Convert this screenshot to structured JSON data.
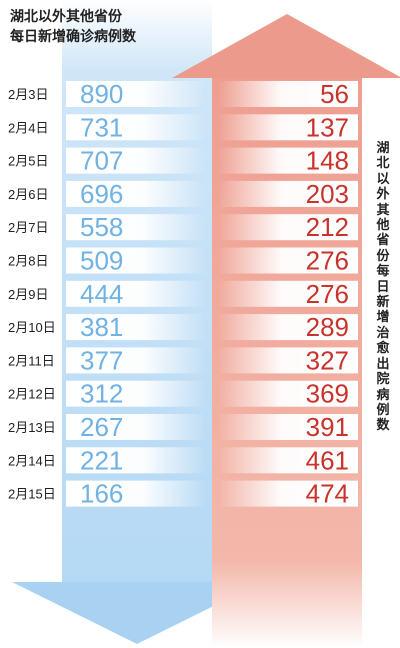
{
  "left_title_line1": "湖北以外其他省份",
  "left_title_line2": "每日新增确诊病例数",
  "right_title": "湖北以外其他省份每日新增治愈出院病例数",
  "colors": {
    "confirmed_text": "#6fb2e3",
    "confirmed_arrow": "#bcdcf5",
    "cured_text": "#c8332b",
    "cured_arrow": "#eea496"
  },
  "chart_data": {
    "type": "table",
    "categories": [
      "2月3日",
      "2月4日",
      "2月5日",
      "2月6日",
      "2月7日",
      "2月8日",
      "2月9日",
      "2月10日",
      "2月11日",
      "2月12日",
      "2月13日",
      "2月14日",
      "2月15日"
    ],
    "series": [
      {
        "name": "湖北以外其他省份每日新增确诊病例数",
        "values": [
          890,
          731,
          707,
          696,
          558,
          509,
          444,
          381,
          377,
          312,
          267,
          221,
          166
        ]
      },
      {
        "name": "湖北以外其他省份每日新增治愈出院病例数",
        "values": [
          56,
          137,
          148,
          203,
          212,
          276,
          276,
          289,
          327,
          369,
          391,
          461,
          474
        ]
      }
    ]
  }
}
